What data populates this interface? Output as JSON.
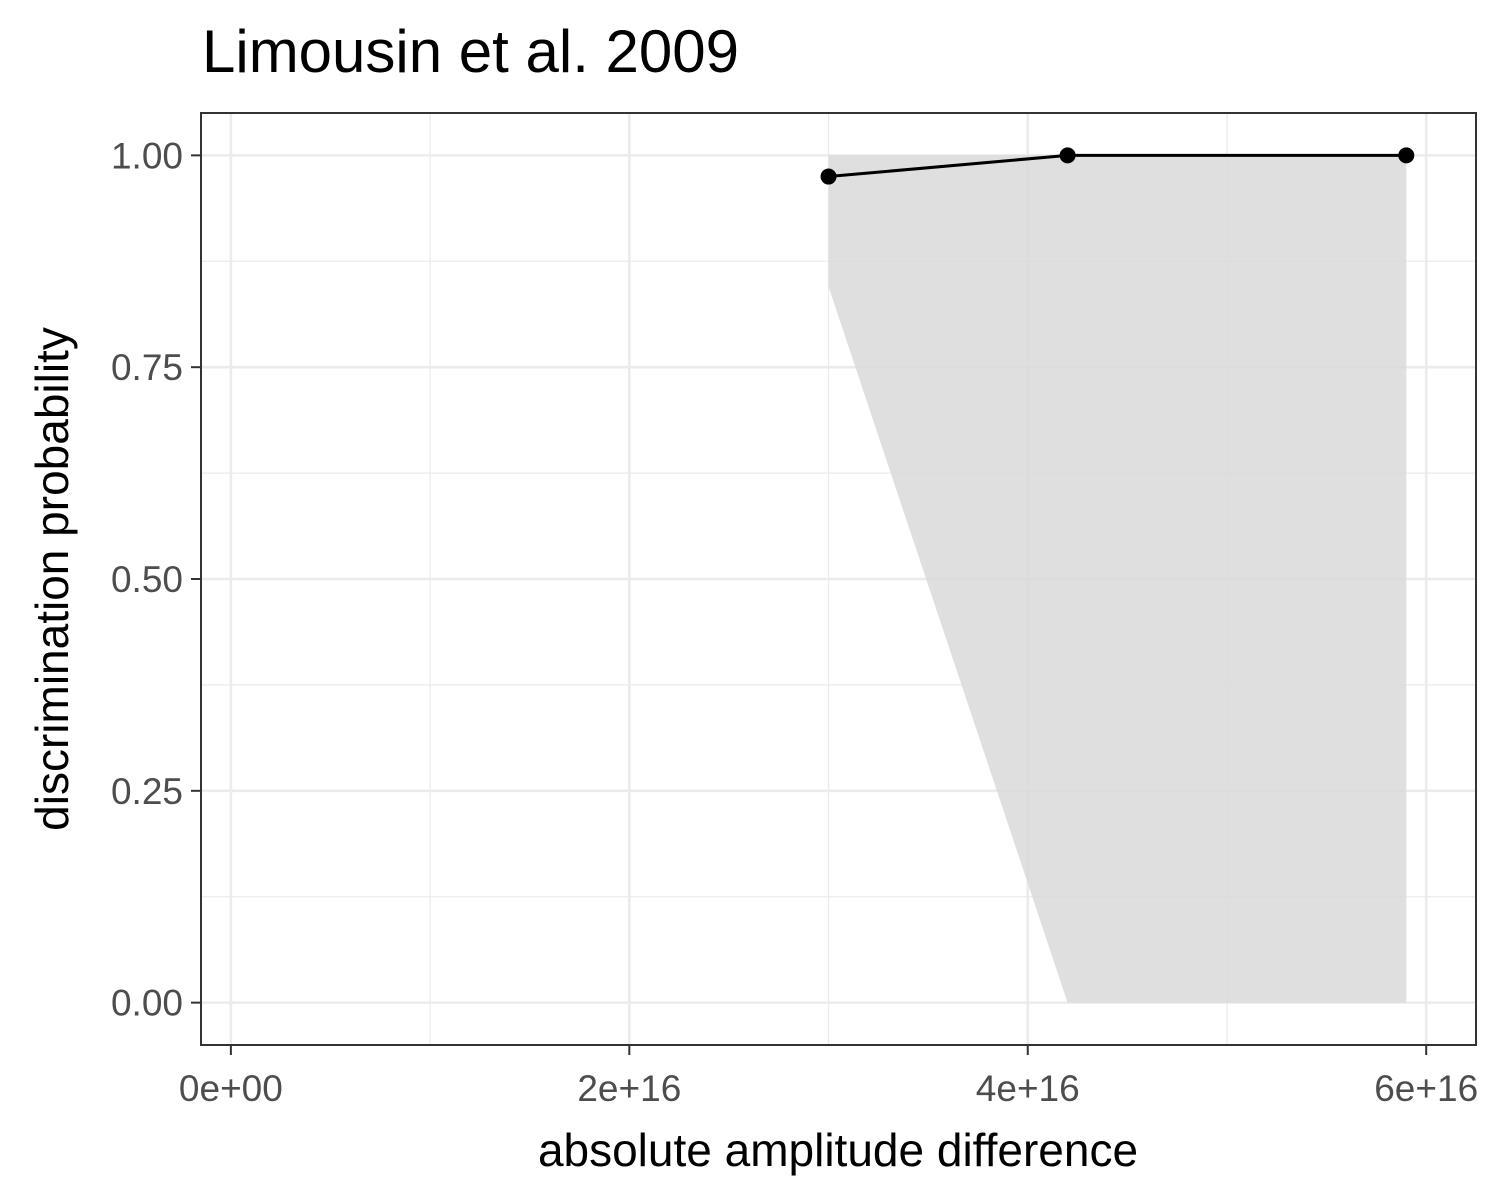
{
  "chart_data": {
    "type": "line",
    "title": "Limousin et al. 2009",
    "xlabel": "absolute amplitude difference",
    "ylabel": "discrimination probability",
    "xlim": [
      -1500000000000000.0,
      6.25e+16
    ],
    "ylim": [
      -0.05,
      1.05
    ],
    "x_ticks": [
      {
        "value": 0,
        "label": "0e+00"
      },
      {
        "value": 2e+16,
        "label": "2e+16"
      },
      {
        "value": 4e+16,
        "label": "4e+16"
      },
      {
        "value": 6e+16,
        "label": "6e+16"
      }
    ],
    "x_minor_ticks": [
      1e+16,
      3e+16,
      5e+16
    ],
    "y_ticks": [
      {
        "value": 0,
        "label": "0.00"
      },
      {
        "value": 0.25,
        "label": "0.25"
      },
      {
        "value": 0.5,
        "label": "0.50"
      },
      {
        "value": 0.75,
        "label": "0.75"
      },
      {
        "value": 1.0,
        "label": "1.00"
      }
    ],
    "y_minor_ticks": [
      0.125,
      0.375,
      0.625,
      0.875
    ],
    "grid": true,
    "legend": "none",
    "series": [
      {
        "points": [
          {
            "x": 3e+16,
            "y": 0.975,
            "ymin": 0.845,
            "ymax": 1.0
          },
          {
            "x": 4.2e+16,
            "y": 1.0,
            "ymin": 0.0,
            "ymax": 1.0
          },
          {
            "x": 5.9e+16,
            "y": 1.0,
            "ymin": 0.0,
            "ymax": 1.0
          }
        ],
        "line_color": "#000000",
        "ribbon_color": "#d9d9d9"
      }
    ]
  }
}
